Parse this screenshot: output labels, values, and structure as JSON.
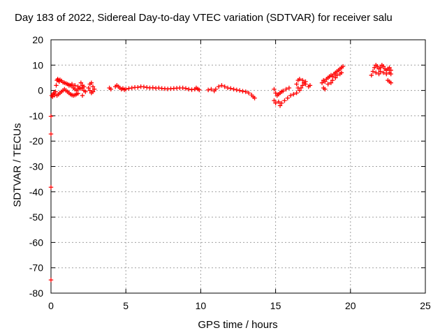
{
  "chart_data": {
    "type": "scatter",
    "title": "Day 183 of 2022, Sidereal Day-to-day VTEC variation (SDTVAR) for receiver salu",
    "xlabel": "GPS time / hours",
    "ylabel": "SDTVAR / TECUs",
    "xlim": [
      0,
      25
    ],
    "ylim": [
      -80,
      20
    ],
    "xticks": [
      0,
      5,
      10,
      15,
      20,
      25
    ],
    "yticks": [
      20,
      10,
      0,
      -10,
      -20,
      -30,
      -40,
      -50,
      -60,
      -70,
      -80
    ],
    "grid": true,
    "marker": "+",
    "color": "#ff0000",
    "series": [
      {
        "name": "SDTVAR",
        "points": [
          [
            0.05,
            -2
          ],
          [
            0.1,
            -2.5
          ],
          [
            0.15,
            -1.5
          ],
          [
            0.2,
            -1
          ],
          [
            0.25,
            -1.8
          ],
          [
            0.3,
            -0.5
          ],
          [
            0.35,
            2
          ],
          [
            0.4,
            4
          ],
          [
            0.45,
            4.5
          ],
          [
            0.5,
            4
          ],
          [
            0.55,
            3.5
          ],
          [
            0.6,
            4.2
          ],
          [
            0.7,
            3.8
          ],
          [
            0.8,
            3.2
          ],
          [
            0.9,
            3
          ],
          [
            1.0,
            2.8
          ],
          [
            1.1,
            2.5
          ],
          [
            1.2,
            2.2
          ],
          [
            1.3,
            2
          ],
          [
            1.4,
            1.8
          ],
          [
            0.4,
            -2
          ],
          [
            0.5,
            -1.5
          ],
          [
            0.6,
            -1
          ],
          [
            0.7,
            -0.5
          ],
          [
            0.8,
            0
          ],
          [
            0.9,
            0.5
          ],
          [
            1.0,
            0
          ],
          [
            1.1,
            -0.5
          ],
          [
            1.2,
            -1
          ],
          [
            1.3,
            -1.5
          ],
          [
            1.4,
            -1.8
          ],
          [
            1.5,
            -2
          ],
          [
            1.6,
            -1.8
          ],
          [
            1.7,
            -1.5
          ],
          [
            1.8,
            -1.2
          ],
          [
            1.2,
            2
          ],
          [
            1.4,
            2.5
          ],
          [
            1.6,
            2
          ],
          [
            1.8,
            1.5
          ],
          [
            1.9,
            1
          ],
          [
            1.5,
            1
          ],
          [
            1.6,
            0.5
          ],
          [
            1.7,
            0
          ],
          [
            1.8,
            0.5
          ],
          [
            2.0,
            0.8
          ],
          [
            2.1,
            1
          ],
          [
            2.2,
            0
          ],
          [
            2.3,
            -0.5
          ],
          [
            2.0,
            3
          ],
          [
            2.1,
            2
          ],
          [
            2.1,
            -2
          ],
          [
            2.2,
            1.5
          ],
          [
            2.5,
            1
          ],
          [
            2.6,
            0
          ],
          [
            2.6,
            2.5
          ],
          [
            2.7,
            -1
          ],
          [
            2.7,
            3
          ],
          [
            2.8,
            1.5
          ],
          [
            2.8,
            -0.5
          ],
          [
            2.9,
            0.5
          ],
          [
            0.0,
            -10.2
          ],
          [
            0.0,
            -17.2
          ],
          [
            0.0,
            -38.2
          ],
          [
            0.0,
            -74.8
          ],
          [
            3.9,
            1
          ],
          [
            4.0,
            0.5
          ],
          [
            4.3,
            1.5
          ],
          [
            4.4,
            2
          ],
          [
            4.5,
            1.5
          ],
          [
            4.6,
            1
          ],
          [
            4.7,
            0.5
          ],
          [
            4.8,
            0.8
          ],
          [
            4.9,
            0.3
          ],
          [
            5.0,
            0.5
          ],
          [
            5.2,
            0.8
          ],
          [
            5.4,
            1
          ],
          [
            5.6,
            1.2
          ],
          [
            5.8,
            1.2
          ],
          [
            6.0,
            1.5
          ],
          [
            6.2,
            1.4
          ],
          [
            6.4,
            1.2
          ],
          [
            6.6,
            1
          ],
          [
            6.8,
            1.1
          ],
          [
            7.0,
            0.9
          ],
          [
            7.2,
            1
          ],
          [
            7.4,
            0.8
          ],
          [
            7.6,
            0.7
          ],
          [
            7.8,
            0.6
          ],
          [
            8.0,
            0.7
          ],
          [
            8.2,
            0.8
          ],
          [
            8.4,
            0.9
          ],
          [
            8.6,
            1
          ],
          [
            8.8,
            1
          ],
          [
            9.0,
            0.8
          ],
          [
            9.2,
            0.5
          ],
          [
            9.4,
            0.3
          ],
          [
            9.6,
            0.5
          ],
          [
            9.7,
            1
          ],
          [
            9.8,
            0.6
          ],
          [
            9.9,
            0.2
          ],
          [
            10.5,
            0.2
          ],
          [
            10.7,
            0.5
          ],
          [
            10.9,
            -0.2
          ],
          [
            11.0,
            0.5
          ],
          [
            11.2,
            1.5
          ],
          [
            11.4,
            2
          ],
          [
            11.6,
            1.5
          ],
          [
            11.8,
            1
          ],
          [
            12.0,
            0.8
          ],
          [
            12.2,
            0.5
          ],
          [
            12.4,
            0.2
          ],
          [
            12.6,
            0
          ],
          [
            12.8,
            -0.3
          ],
          [
            13.0,
            -0.5
          ],
          [
            13.2,
            -1
          ],
          [
            13.4,
            -1.8
          ],
          [
            13.5,
            -2.5
          ],
          [
            13.6,
            -3
          ],
          [
            14.9,
            0.5
          ],
          [
            15.0,
            -1
          ],
          [
            15.1,
            -2
          ],
          [
            15.2,
            -1.5
          ],
          [
            15.3,
            -1
          ],
          [
            15.4,
            -0.5
          ],
          [
            15.5,
            -0.2
          ],
          [
            15.7,
            0.5
          ],
          [
            15.9,
            1
          ],
          [
            14.9,
            -4
          ],
          [
            15.0,
            -5
          ],
          [
            15.2,
            -4.5
          ],
          [
            15.3,
            -6
          ],
          [
            15.4,
            -5
          ],
          [
            15.6,
            -4
          ],
          [
            15.8,
            -3
          ],
          [
            16.0,
            -2
          ],
          [
            16.2,
            -1.5
          ],
          [
            16.4,
            -1
          ],
          [
            16.6,
            0
          ],
          [
            16.7,
            1
          ],
          [
            16.8,
            2
          ],
          [
            16.9,
            3
          ],
          [
            17.0,
            3.5
          ],
          [
            16.5,
            4
          ],
          [
            16.6,
            4.5
          ],
          [
            16.8,
            4
          ],
          [
            17.0,
            2.5
          ],
          [
            17.2,
            1.5
          ],
          [
            17.3,
            2
          ],
          [
            16.4,
            2.5
          ],
          [
            16.5,
            1
          ],
          [
            18.1,
            3
          ],
          [
            18.2,
            4
          ],
          [
            18.3,
            3.5
          ],
          [
            18.4,
            4.5
          ],
          [
            18.5,
            5
          ],
          [
            18.6,
            5.5
          ],
          [
            18.7,
            6
          ],
          [
            18.8,
            5.5
          ],
          [
            18.9,
            6.5
          ],
          [
            19.0,
            7
          ],
          [
            19.1,
            7.5
          ],
          [
            19.2,
            8
          ],
          [
            19.3,
            8.5
          ],
          [
            19.4,
            9
          ],
          [
            19.5,
            9.5
          ],
          [
            18.2,
            1
          ],
          [
            18.3,
            0.5
          ],
          [
            18.5,
            2.5
          ],
          [
            18.7,
            3
          ],
          [
            18.8,
            4
          ],
          [
            19.0,
            5
          ],
          [
            19.1,
            6
          ],
          [
            19.3,
            6.5
          ],
          [
            19.4,
            7
          ],
          [
            21.4,
            6
          ],
          [
            21.5,
            7.5
          ],
          [
            21.6,
            9
          ],
          [
            21.7,
            10
          ],
          [
            21.8,
            9.5
          ],
          [
            21.9,
            8.5
          ],
          [
            22.0,
            9
          ],
          [
            22.1,
            10
          ],
          [
            22.2,
            9.5
          ],
          [
            22.3,
            8.5
          ],
          [
            22.4,
            8
          ],
          [
            22.5,
            8.5
          ],
          [
            22.6,
            9
          ],
          [
            22.7,
            8
          ],
          [
            21.7,
            7
          ],
          [
            21.9,
            6.5
          ],
          [
            22.0,
            7.5
          ],
          [
            22.2,
            7
          ],
          [
            22.4,
            6.5
          ],
          [
            22.6,
            7
          ],
          [
            22.7,
            6.5
          ],
          [
            22.5,
            4
          ],
          [
            22.6,
            3.5
          ],
          [
            22.7,
            3
          ]
        ]
      }
    ]
  }
}
